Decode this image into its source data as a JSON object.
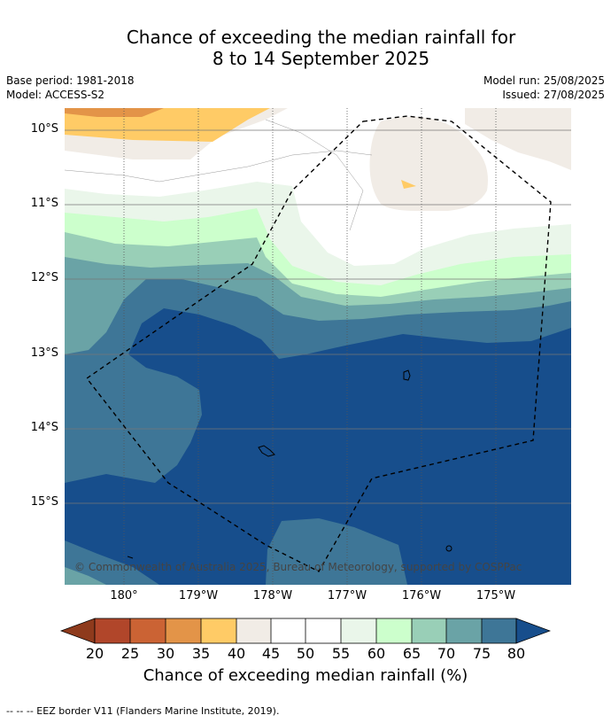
{
  "title": {
    "line1": "Chance of exceeding the median rainfall for",
    "line2": "8 to 14 September 2025"
  },
  "meta": {
    "base_period": "Base period: 1981-2018",
    "model": "Model: ACCESS-S2",
    "model_run": "Model run: 25/08/2025",
    "issued": "Issued: 27/08/2025"
  },
  "map": {
    "lat_labels": [
      "10°S",
      "11°S",
      "12°S",
      "13°S",
      "14°S",
      "15°S"
    ],
    "lon_labels": [
      "180°",
      "179°W",
      "178°W",
      "177°W",
      "176°W",
      "175°W"
    ],
    "copyright": "© Commonwealth of Australia 2025, Bureau of Meteorology, supported by COSPPac"
  },
  "colorbar": {
    "ticks": [
      "20",
      "25",
      "30",
      "35",
      "40",
      "45",
      "50",
      "55",
      "60",
      "65",
      "70",
      "75",
      "80"
    ],
    "colors": [
      "#8e3a1c",
      "#b1462a",
      "#cb6334",
      "#e39448",
      "#ffcb66",
      "#f1ece6",
      "#ffffff",
      "#ffffff",
      "#eaf6ea",
      "#ccffcc",
      "#99cfb7",
      "#6aa3a6",
      "#3e7697",
      "#174e8c"
    ],
    "label": "Chance of exceeding median rainfall (%)"
  },
  "footer": {
    "legend": "-- -- -- EEZ border V11 (Flanders Marine Institute, 2019)."
  }
}
